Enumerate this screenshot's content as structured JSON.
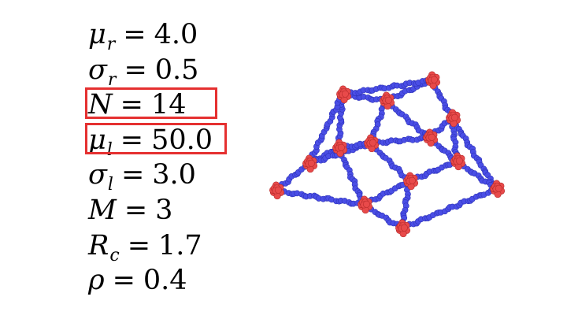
{
  "parameters": [
    {
      "symbol": "μ",
      "subscript": "r",
      "eq": "=",
      "value": "4.0",
      "highlighted": false
    },
    {
      "symbol": "σ",
      "subscript": "r",
      "eq": "=",
      "value": "0.5",
      "highlighted": false
    },
    {
      "symbol": "N",
      "subscript": "",
      "eq": "=",
      "value": "14",
      "highlighted": true
    },
    {
      "symbol": "μ",
      "subscript": "l",
      "eq": "=",
      "value": "50.0",
      "highlighted": true
    },
    {
      "symbol": "σ",
      "subscript": "l",
      "eq": "=",
      "value": "3.0",
      "highlighted": false
    },
    {
      "symbol": "M",
      "subscript": "",
      "eq": "=",
      "value": "3",
      "highlighted": false
    },
    {
      "symbol": "R",
      "subscript": "c",
      "eq": "=",
      "value": "1.7",
      "highlighted": false
    },
    {
      "symbol": "ρ",
      "subscript": "",
      "eq": "=",
      "value": "0.4",
      "highlighted": false
    }
  ],
  "colors": {
    "highlight_box": "#e53030",
    "linker_beads": "#4a4ee6",
    "node_beads": "#e84a4a"
  }
}
